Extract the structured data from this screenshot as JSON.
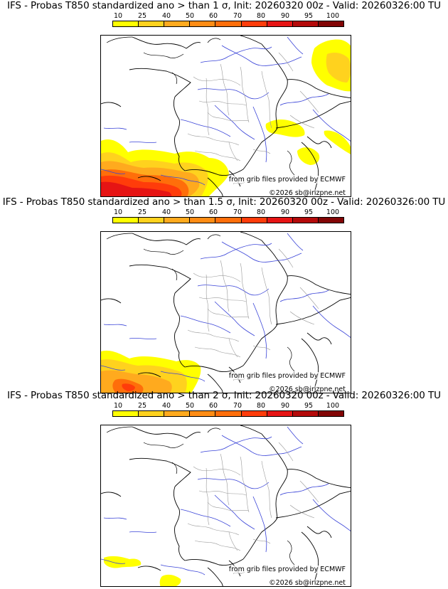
{
  "palette": {
    "p10": "#ffff00",
    "p25": "#ffd21e",
    "p40": "#ffaa1e",
    "p50": "#ff8c14",
    "p60": "#ff6e0a",
    "p70": "#ff3c0a",
    "p80": "#e61414",
    "p90": "#b40a0a",
    "p95": "#820505",
    "p100": "#500000"
  },
  "scale_ticks": [
    "10",
    "25",
    "40",
    "50",
    "60",
    "70",
    "80",
    "90",
    "95",
    "100"
  ],
  "map_credit": "from grib files provided by ECMWF",
  "map_copyright": "©2026 sb@irizpne.net",
  "panels": [
    {
      "title": "IFS - Probas T850  standardized ano > than 1 σ, Init: 20260320 00z - Valid: 20260326:00 TU"
    },
    {
      "title": "IFS - Probas T850  standardized ano > than 1.5 σ, Init: 20260320 00z - Valid: 20260326:00 TU"
    },
    {
      "title": "IFS - Probas T850  standardized ano > than 2 σ, Init: 20260320 00z - Valid: 20260326:00 TU"
    }
  ]
}
